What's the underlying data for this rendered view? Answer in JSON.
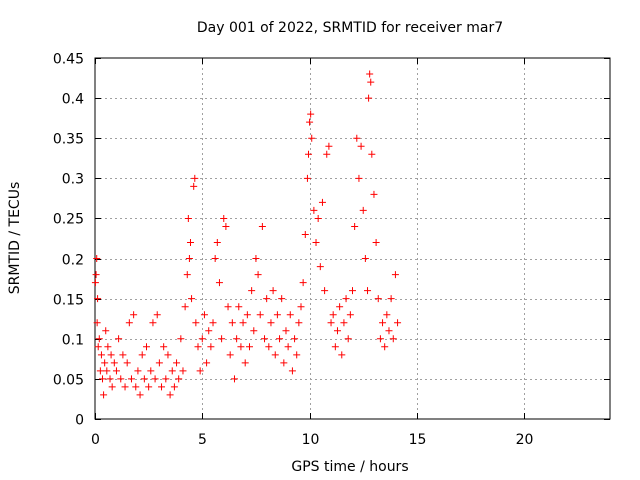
{
  "chart_data": {
    "type": "scatter",
    "title": "Day 001 of 2022, SRMTID for receiver mar7",
    "xlabel": "GPS time / hours",
    "ylabel": "SRMTID / TECUs",
    "xlim": [
      0,
      24
    ],
    "ylim": [
      0,
      0.45
    ],
    "xticks": [
      0,
      5,
      10,
      15,
      20
    ],
    "xtick_labels": [
      "0",
      "5",
      "10",
      "15",
      "20"
    ],
    "yticks": [
      0,
      0.05,
      0.1,
      0.15,
      0.2,
      0.25,
      0.3,
      0.35,
      0.4,
      0.45
    ],
    "ytick_labels": [
      "0",
      "0.05",
      "0.1",
      "0.15",
      "0.2",
      "0.25",
      "0.3",
      "0.35",
      "0.4",
      "0.45"
    ],
    "grid": true,
    "marker": "plus",
    "marker_color": "#ff0000",
    "series": [
      {
        "name": "SRMTID",
        "points": [
          [
            0.02,
            0.17
          ],
          [
            0.05,
            0.18
          ],
          [
            0.08,
            0.2
          ],
          [
            0.1,
            0.12
          ],
          [
            0.12,
            0.15
          ],
          [
            0.15,
            0.09
          ],
          [
            0.2,
            0.1
          ],
          [
            0.25,
            0.06
          ],
          [
            0.3,
            0.08
          ],
          [
            0.35,
            0.05
          ],
          [
            0.4,
            0.03
          ],
          [
            0.45,
            0.07
          ],
          [
            0.5,
            0.11
          ],
          [
            0.55,
            0.06
          ],
          [
            0.6,
            0.09
          ],
          [
            0.7,
            0.05
          ],
          [
            0.75,
            0.08
          ],
          [
            0.8,
            0.04
          ],
          [
            0.9,
            0.07
          ],
          [
            1.0,
            0.06
          ],
          [
            1.1,
            0.1
          ],
          [
            1.2,
            0.05
          ],
          [
            1.3,
            0.08
          ],
          [
            1.4,
            0.04
          ],
          [
            1.5,
            0.07
          ],
          [
            1.6,
            0.12
          ],
          [
            1.7,
            0.05
          ],
          [
            1.8,
            0.13
          ],
          [
            1.9,
            0.04
          ],
          [
            2.0,
            0.06
          ],
          [
            2.1,
            0.03
          ],
          [
            2.2,
            0.08
          ],
          [
            2.3,
            0.05
          ],
          [
            2.4,
            0.09
          ],
          [
            2.5,
            0.04
          ],
          [
            2.6,
            0.06
          ],
          [
            2.7,
            0.12
          ],
          [
            2.8,
            0.05
          ],
          [
            2.9,
            0.13
          ],
          [
            3.0,
            0.07
          ],
          [
            3.1,
            0.04
          ],
          [
            3.2,
            0.09
          ],
          [
            3.3,
            0.05
          ],
          [
            3.4,
            0.08
          ],
          [
            3.5,
            0.03
          ],
          [
            3.6,
            0.06
          ],
          [
            3.7,
            0.04
          ],
          [
            3.8,
            0.07
          ],
          [
            3.9,
            0.05
          ],
          [
            4.0,
            0.1
          ],
          [
            4.1,
            0.06
          ],
          [
            4.2,
            0.14
          ],
          [
            4.3,
            0.18
          ],
          [
            4.35,
            0.25
          ],
          [
            4.4,
            0.2
          ],
          [
            4.45,
            0.22
          ],
          [
            4.5,
            0.15
          ],
          [
            4.6,
            0.29
          ],
          [
            4.65,
            0.3
          ],
          [
            4.7,
            0.12
          ],
          [
            4.8,
            0.09
          ],
          [
            4.9,
            0.06
          ],
          [
            5.0,
            0.1
          ],
          [
            5.1,
            0.13
          ],
          [
            5.2,
            0.07
          ],
          [
            5.3,
            0.11
          ],
          [
            5.4,
            0.09
          ],
          [
            5.5,
            0.12
          ],
          [
            5.6,
            0.2
          ],
          [
            5.7,
            0.22
          ],
          [
            5.8,
            0.17
          ],
          [
            5.9,
            0.1
          ],
          [
            6.0,
            0.25
          ],
          [
            6.1,
            0.24
          ],
          [
            6.2,
            0.14
          ],
          [
            6.3,
            0.08
          ],
          [
            6.4,
            0.12
          ],
          [
            6.5,
            0.05
          ],
          [
            6.6,
            0.1
          ],
          [
            6.7,
            0.14
          ],
          [
            6.8,
            0.09
          ],
          [
            6.9,
            0.12
          ],
          [
            7.0,
            0.07
          ],
          [
            7.1,
            0.13
          ],
          [
            7.2,
            0.09
          ],
          [
            7.3,
            0.16
          ],
          [
            7.4,
            0.11
          ],
          [
            7.5,
            0.2
          ],
          [
            7.6,
            0.18
          ],
          [
            7.7,
            0.13
          ],
          [
            7.8,
            0.24
          ],
          [
            7.9,
            0.1
          ],
          [
            8.0,
            0.15
          ],
          [
            8.1,
            0.09
          ],
          [
            8.2,
            0.12
          ],
          [
            8.3,
            0.16
          ],
          [
            8.4,
            0.08
          ],
          [
            8.5,
            0.13
          ],
          [
            8.6,
            0.1
          ],
          [
            8.7,
            0.15
          ],
          [
            8.8,
            0.07
          ],
          [
            8.9,
            0.11
          ],
          [
            9.0,
            0.09
          ],
          [
            9.1,
            0.13
          ],
          [
            9.2,
            0.06
          ],
          [
            9.3,
            0.1
          ],
          [
            9.4,
            0.08
          ],
          [
            9.5,
            0.12
          ],
          [
            9.6,
            0.14
          ],
          [
            9.7,
            0.17
          ],
          [
            9.8,
            0.23
          ],
          [
            9.9,
            0.3
          ],
          [
            9.95,
            0.33
          ],
          [
            10.0,
            0.37
          ],
          [
            10.05,
            0.38
          ],
          [
            10.1,
            0.35
          ],
          [
            10.2,
            0.26
          ],
          [
            10.3,
            0.22
          ],
          [
            10.4,
            0.25
          ],
          [
            10.5,
            0.19
          ],
          [
            10.6,
            0.27
          ],
          [
            10.7,
            0.16
          ],
          [
            10.8,
            0.33
          ],
          [
            10.9,
            0.34
          ],
          [
            11.0,
            0.12
          ],
          [
            11.1,
            0.13
          ],
          [
            11.2,
            0.09
          ],
          [
            11.3,
            0.11
          ],
          [
            11.4,
            0.14
          ],
          [
            11.5,
            0.08
          ],
          [
            11.6,
            0.12
          ],
          [
            11.7,
            0.15
          ],
          [
            11.8,
            0.1
          ],
          [
            11.9,
            0.13
          ],
          [
            12.0,
            0.16
          ],
          [
            12.1,
            0.24
          ],
          [
            12.2,
            0.35
          ],
          [
            12.3,
            0.3
          ],
          [
            12.4,
            0.34
          ],
          [
            12.5,
            0.26
          ],
          [
            12.6,
            0.2
          ],
          [
            12.7,
            0.16
          ],
          [
            12.75,
            0.4
          ],
          [
            12.8,
            0.43
          ],
          [
            12.85,
            0.42
          ],
          [
            12.9,
            0.33
          ],
          [
            13.0,
            0.28
          ],
          [
            13.1,
            0.22
          ],
          [
            13.2,
            0.15
          ],
          [
            13.3,
            0.1
          ],
          [
            13.4,
            0.12
          ],
          [
            13.5,
            0.09
          ],
          [
            13.6,
            0.13
          ],
          [
            13.7,
            0.11
          ],
          [
            13.8,
            0.15
          ],
          [
            13.9,
            0.1
          ],
          [
            14.0,
            0.18
          ],
          [
            14.1,
            0.12
          ]
        ]
      }
    ]
  }
}
